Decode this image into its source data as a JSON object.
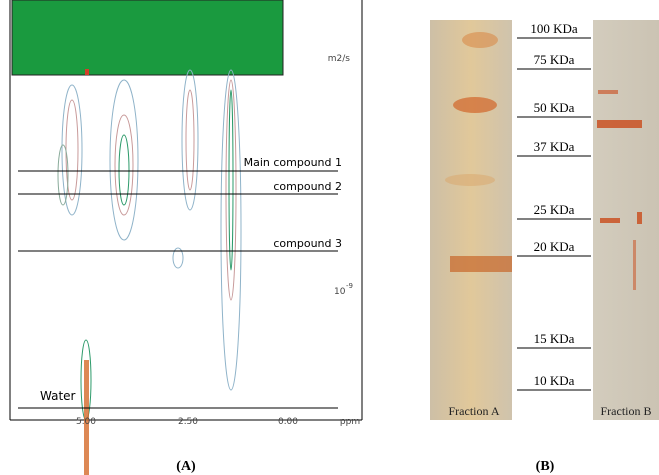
{
  "panels": [
    {
      "caption": "(A)",
      "unit": "m2/s",
      "exponent_base": "10",
      "exponent": "-9",
      "lines": [
        "Main compound 1",
        "compound 2",
        "compound 3",
        "Water"
      ],
      "xticks": [
        "5.00",
        "2.50",
        "0.00"
      ],
      "x_unit": "ppm"
    },
    {
      "caption": "(B)",
      "markers": [
        "100 KDa",
        "75 KDa",
        "50 KDa",
        "37 KDa",
        "25 KDa",
        "20 KDa",
        "15 KDa",
        "10 KDa"
      ],
      "lanes": [
        "Fraction A",
        "Fraction B"
      ]
    }
  ]
}
